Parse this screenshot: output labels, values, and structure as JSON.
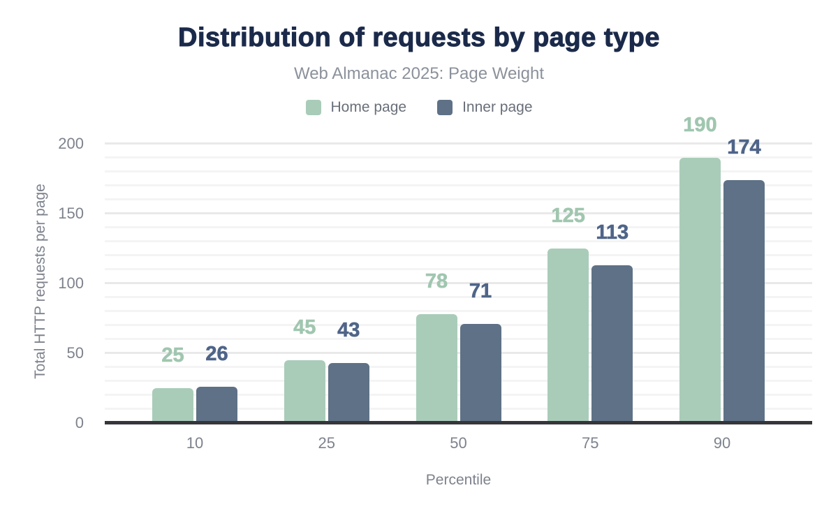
{
  "header": {
    "title": "Distribution of requests by page type",
    "subtitle": "Web Almanac 2025: Page Weight"
  },
  "colors": {
    "title_navy": "#1b2a4a",
    "home_page_green": "#a9ccb9",
    "inner_page_slate": "#5e7186",
    "home_label_green": "#a0c6af",
    "inner_label_slate": "#4f6488",
    "axis_line": "#35363a",
    "tick_text": "#7d828c",
    "subtitle_gray": "#8b919b",
    "legend_text": "#696f79",
    "gridline_minor": "#f4f4f4",
    "gridline_major": "#e9e9e9"
  },
  "chart_data": {
    "type": "bar",
    "title": "Distribution of requests by page type",
    "subtitle": "Web Almanac 2025: Page Weight",
    "categories": [
      "10",
      "25",
      "50",
      "75",
      "90"
    ],
    "series": [
      {
        "name": "Home page",
        "color": "#a9ccb9",
        "label_color": "#a0c6af",
        "values": [
          25,
          45,
          78,
          125,
          190
        ]
      },
      {
        "name": "Inner page",
        "color": "#5e7186",
        "label_color": "#4f6488",
        "values": [
          26,
          43,
          71,
          113,
          174
        ]
      }
    ],
    "xlabel": "Percentile",
    "ylabel": "Total HTTP requests per page",
    "ylim": [
      0,
      200
    ],
    "yticks": [
      0,
      50,
      100,
      150,
      200
    ],
    "grid": "horizontal; minor lines every 10, major lines every 50",
    "legend_position": "top",
    "value_labels": "above bars, colored by series"
  }
}
